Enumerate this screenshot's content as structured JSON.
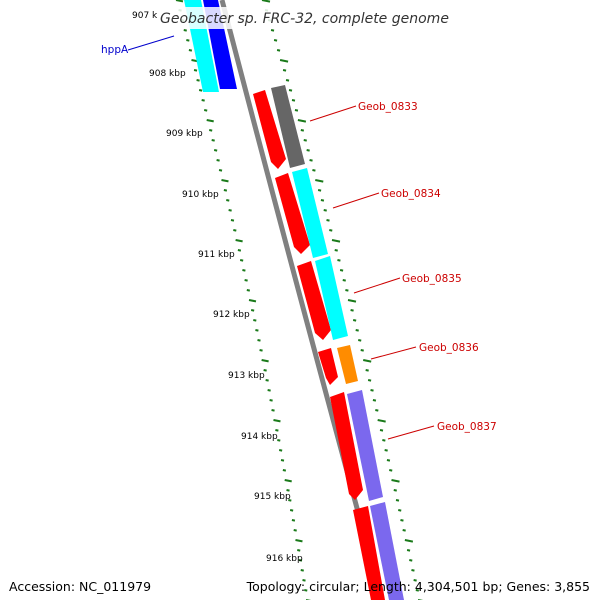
{
  "title": "Geobacter sp. FRC-32, complete genome",
  "accession": "Accession: NC_011979",
  "topology": "Topology: circular; Length: 4,304,501 bp; Genes: 3,855",
  "colors": {
    "backbone": "#808080",
    "tick": "#1a7a1a",
    "label_line_gene": "#cc0000",
    "label_line_hppa": "#0000cc",
    "red": "#ff0000",
    "cyan": "#00ffff",
    "blue": "#0000ff",
    "gray": "#666666",
    "orange": "#ff8c00",
    "purple": "#7b68ee"
  },
  "kbp_labels": [
    "907 k",
    "908 kbp",
    "909 kbp",
    "910 kbp",
    "911 kbp",
    "912 kbp",
    "913 kbp",
    "914 kbp",
    "915 kbp",
    "916 kbp"
  ],
  "gene_labels": {
    "hppa": "hppA",
    "g0833": "Geob_0833",
    "g0834": "Geob_0834",
    "g0835": "Geob_0835",
    "g0836": "Geob_0836",
    "g0837": "Geob_0837"
  }
}
